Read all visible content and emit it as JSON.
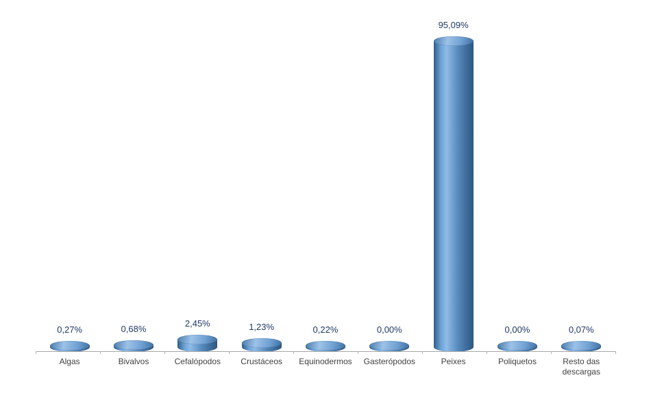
{
  "chart_data": {
    "type": "bar",
    "subtype": "3d-cylinder",
    "title": "",
    "xlabel": "",
    "ylabel": "",
    "ylim": [
      0,
      100
    ],
    "grid": false,
    "legend": false,
    "categories": [
      "Algas",
      "Bivalvos",
      "Cefalópodos",
      "Crustáceos",
      "Equinodermos",
      "Gasterópodos",
      "Peixes",
      "Poliquetos",
      "Resto das descargas"
    ],
    "values": [
      0.27,
      0.68,
      2.45,
      1.23,
      0.22,
      0.0,
      95.09,
      0.0,
      0.07
    ],
    "value_labels": [
      "0,27%",
      "0,68%",
      "2,45%",
      "1,23%",
      "0,22%",
      "0,00%",
      "95,09%",
      "0,00%",
      "0,07%"
    ],
    "colors": {
      "bar_mid": "#4f81bd",
      "bar_light": "#8fbce6",
      "bar_dark": "#2b5680",
      "value_label_text": "#1f3864",
      "category_label_text": "#3f3f3f",
      "axis_line": "#a6a6a6"
    }
  }
}
